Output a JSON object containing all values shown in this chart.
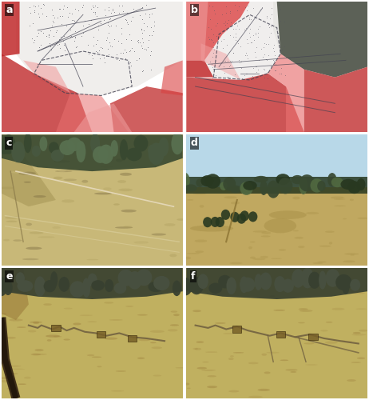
{
  "labels": [
    "a",
    "b",
    "c",
    "d",
    "e",
    "f"
  ],
  "label_color": "white",
  "label_fontsize": 9,
  "label_fontweight": "bold",
  "label_bg": "black",
  "figsize": [
    4.62,
    5.0
  ],
  "dpi": 100,
  "wspace": 0.02,
  "hspace": 0.02,
  "panel_a": {
    "map_bg": "#d8d0c8",
    "map_white": "#f0eeec",
    "red_dark": "#c0292a",
    "red_mid": "#d94040",
    "red_light": "#e87070",
    "red_pale": "#f0a0a0",
    "dot_color": "#555560",
    "line_color": "#404050"
  },
  "panel_b": {
    "map_bg": "#cec8c0",
    "map_white": "#f0eeec",
    "tree_dark": "#4a5045",
    "red_dark": "#c0292a",
    "red_mid": "#d94040",
    "red_light": "#e87070",
    "red_pale": "#f0a0a0"
  },
  "panel_c": {
    "ground_main": "#c8b878",
    "ground_dark": "#a89858",
    "ground_shadow": "#786840",
    "tree_dark": "#384830",
    "tree_mid": "#485840",
    "tree_light": "#587050",
    "sky_color": "#d0c8b0"
  },
  "panel_d": {
    "sky_top": "#b8d8e8",
    "sky_bottom": "#c8e0ec",
    "ground_main": "#c0a860",
    "ground_mid": "#a89048",
    "tree_dark": "#283820",
    "tree_mid": "#384830",
    "tree_light": "#506840"
  },
  "panel_ef": {
    "ground_main": "#c0b060",
    "ground_dark": "#987838",
    "ground_shadow": "#786028",
    "tree_dark": "#384030",
    "tree_mid": "#485040",
    "road_dark": "#302010",
    "trench_color": "#706040"
  }
}
